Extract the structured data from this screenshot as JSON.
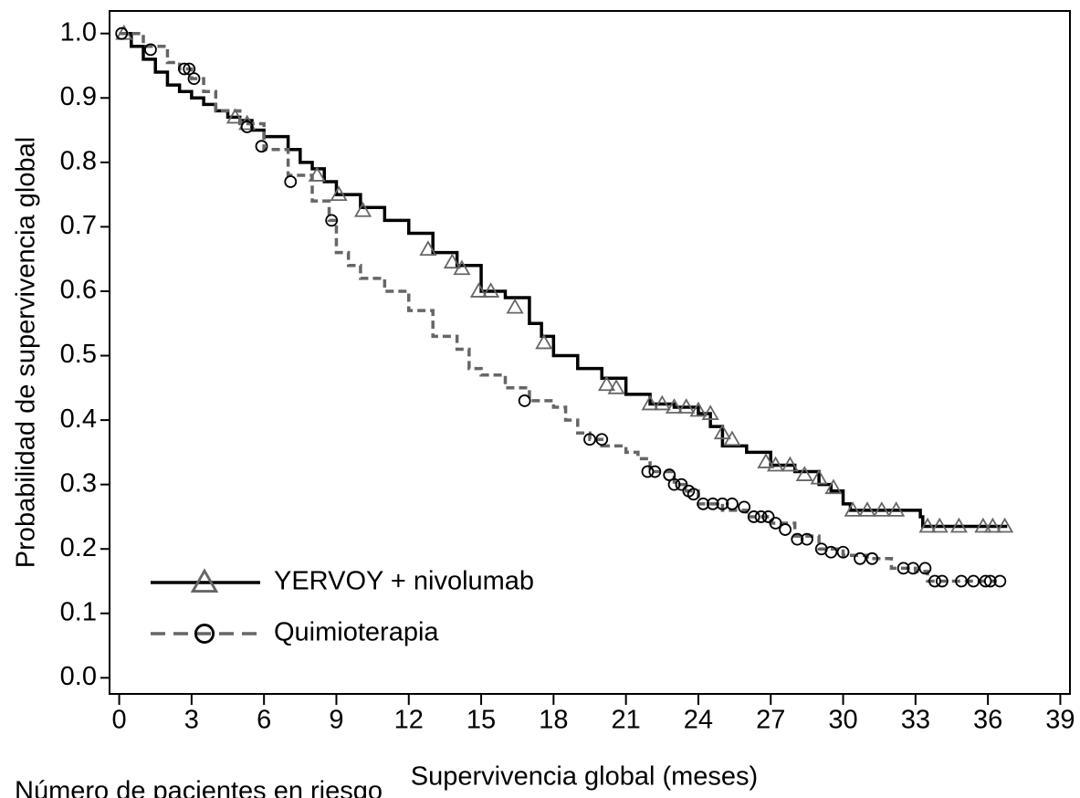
{
  "chart_data": {
    "type": "km",
    "xlabel": "Supervivencia global (meses)",
    "ylabel": "Probabilidad de supervivencia global",
    "risk_table_title": "Número de pacientes en riesgo",
    "xlim": [
      -0.4,
      39.4
    ],
    "ylim": [
      -0.025,
      1.035
    ],
    "xticks": [
      0,
      3,
      6,
      9,
      12,
      15,
      18,
      21,
      24,
      27,
      30,
      33,
      36,
      39
    ],
    "yticks": [
      {
        "value": 0,
        "label": "0.0"
      },
      0.1,
      0.2,
      0.3,
      0.4,
      0.5,
      0.6,
      0.7,
      0.8,
      0.9,
      {
        "value": 1,
        "label": "1.0"
      }
    ],
    "legend": "lower left",
    "series": [
      {
        "name": "YERVOY + nivolumab",
        "color": "#000000",
        "dash": false,
        "marker": "triangle",
        "marker_color": "#666666",
        "x": [
          0,
          0.5,
          1,
          1.5,
          2,
          2.5,
          3,
          3.5,
          4,
          4.5,
          5,
          5.5,
          6,
          7,
          7.5,
          8,
          8.5,
          9,
          10,
          11,
          12,
          13,
          14,
          15,
          16,
          17,
          17.5,
          18,
          19,
          20,
          21,
          22,
          23,
          24,
          24.5,
          25,
          26,
          27,
          28,
          29,
          29.5,
          30,
          30.3,
          33.2,
          33.3,
          36.8
        ],
        "values": [
          1.0,
          0.98,
          0.96,
          0.94,
          0.92,
          0.91,
          0.9,
          0.89,
          0.88,
          0.87,
          0.865,
          0.85,
          0.84,
          0.82,
          0.8,
          0.79,
          0.77,
          0.75,
          0.73,
          0.71,
          0.69,
          0.66,
          0.64,
          0.6,
          0.59,
          0.55,
          0.53,
          0.5,
          0.48,
          0.465,
          0.44,
          0.425,
          0.42,
          0.41,
          0.39,
          0.36,
          0.35,
          0.33,
          0.32,
          0.3,
          0.29,
          0.27,
          0.26,
          0.25,
          0.235,
          0.235
        ],
        "censored_x": [
          0.2,
          4.8,
          5.3,
          8.2,
          9.1,
          10.1,
          12.8,
          13.8,
          14.2,
          14.9,
          15.4,
          16.4,
          17.6,
          20.2,
          20.6,
          22,
          22.5,
          23,
          23.5,
          24,
          24.5,
          25,
          25.4,
          26.8,
          27.2,
          27.8,
          28.4,
          29,
          29.6,
          30.4,
          31,
          31.6,
          32.2,
          33.5,
          34,
          34.8,
          35.8,
          36.2,
          36.7
        ],
        "censored_values": [
          1.0,
          0.87,
          0.86,
          0.78,
          0.75,
          0.725,
          0.665,
          0.645,
          0.635,
          0.6,
          0.6,
          0.575,
          0.52,
          0.455,
          0.45,
          0.425,
          0.425,
          0.42,
          0.42,
          0.415,
          0.41,
          0.38,
          0.37,
          0.335,
          0.33,
          0.33,
          0.315,
          0.31,
          0.295,
          0.26,
          0.26,
          0.26,
          0.26,
          0.235,
          0.235,
          0.235,
          0.235,
          0.235,
          0.235
        ]
      },
      {
        "name": "Quimioterapia",
        "color": "#666666",
        "dash": true,
        "marker": "circle",
        "marker_color": "#000000",
        "x": [
          0,
          1,
          2,
          2.5,
          3,
          3.5,
          4,
          5,
          6,
          7,
          8,
          8.7,
          9,
          9.5,
          10,
          11,
          12,
          13,
          14,
          14.5,
          15,
          16,
          17,
          18,
          18.5,
          19,
          19.5,
          20,
          21,
          21.5,
          22,
          23,
          23.5,
          24,
          25,
          26,
          27,
          28,
          29,
          30,
          31,
          32,
          33,
          33.5,
          36.3
        ],
        "values": [
          1.0,
          0.98,
          0.955,
          0.945,
          0.93,
          0.91,
          0.88,
          0.86,
          0.82,
          0.78,
          0.74,
          0.71,
          0.66,
          0.64,
          0.62,
          0.6,
          0.57,
          0.53,
          0.51,
          0.48,
          0.47,
          0.45,
          0.43,
          0.42,
          0.4,
          0.38,
          0.37,
          0.36,
          0.35,
          0.34,
          0.32,
          0.3,
          0.29,
          0.27,
          0.26,
          0.25,
          0.24,
          0.22,
          0.2,
          0.19,
          0.185,
          0.17,
          0.165,
          0.15,
          0.15
        ],
        "censored_x": [
          0.1,
          1.3,
          2.7,
          2.9,
          3.1,
          5.3,
          5.9,
          7.1,
          8.8,
          16.8,
          19.5,
          20,
          21.9,
          22.2,
          22.8,
          23,
          23.3,
          23.6,
          23.8,
          24.2,
          24.6,
          25,
          25.4,
          25.9,
          26.3,
          26.6,
          26.9,
          27.2,
          27.6,
          28.1,
          28.5,
          29.1,
          29.5,
          30,
          30.7,
          31.2,
          32.5,
          32.9,
          33.4,
          33.8,
          34.1,
          34.9,
          35.4,
          35.9,
          36.1,
          36.5
        ],
        "censored_values": [
          1.0,
          0.975,
          0.945,
          0.945,
          0.93,
          0.855,
          0.825,
          0.77,
          0.71,
          0.43,
          0.37,
          0.37,
          0.32,
          0.32,
          0.315,
          0.3,
          0.3,
          0.29,
          0.285,
          0.27,
          0.27,
          0.27,
          0.27,
          0.265,
          0.25,
          0.25,
          0.25,
          0.24,
          0.23,
          0.215,
          0.215,
          0.2,
          0.195,
          0.195,
          0.185,
          0.185,
          0.17,
          0.17,
          0.17,
          0.15,
          0.15,
          0.15,
          0.15,
          0.15,
          0.15,
          0.15
        ]
      }
    ]
  }
}
